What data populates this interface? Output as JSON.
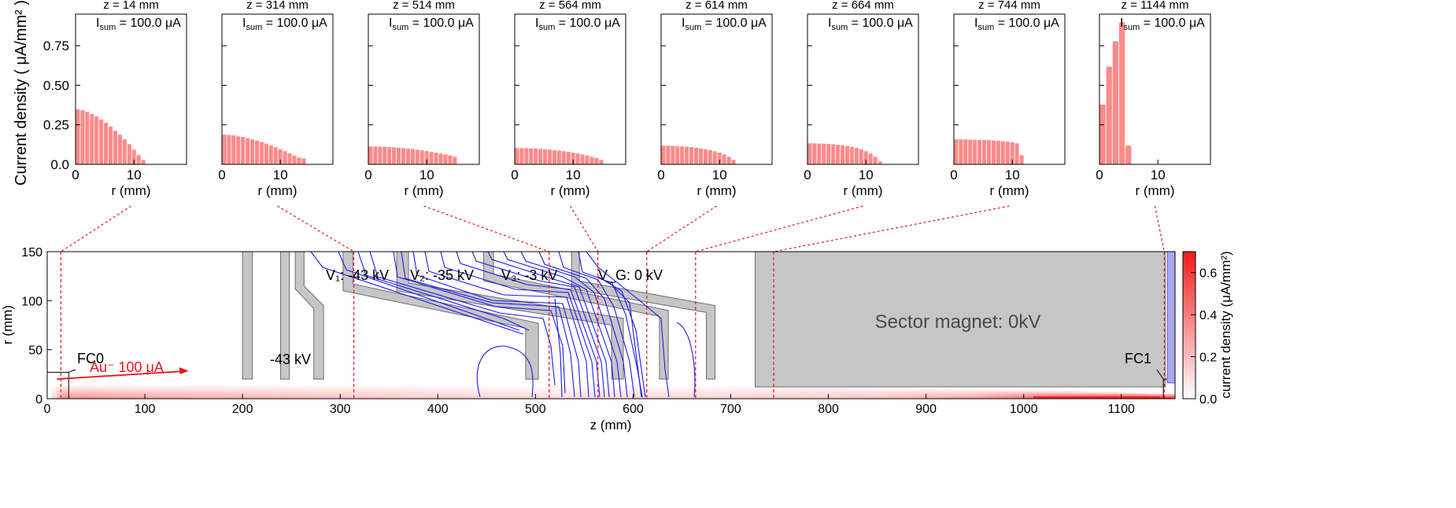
{
  "figure": {
    "top_ylabel": "Current density ( μA/mm² )",
    "top_xlabel": "r (mm)",
    "top_yticks": [
      "0.0",
      "0.25",
      "0.50",
      "0.75"
    ],
    "top_xticks": [
      "0",
      "10"
    ],
    "isum_label": "I",
    "isum_sub": "sum",
    "isum_value": "= 100.0  μA",
    "bottom_xlabel": "z (mm)",
    "bottom_ylabel": "r (mm)",
    "bottom_xticks": [
      "0",
      "100",
      "200",
      "300",
      "400",
      "500",
      "600",
      "700",
      "800",
      "900",
      "1000",
      "1100"
    ],
    "bottom_yticks": [
      "0",
      "50",
      "100",
      "150"
    ],
    "colorbar_label": "current density (μA/mm²)",
    "colorbar_ticks": [
      "0.0",
      "0.2",
      "0.4",
      "0.6"
    ],
    "annotations": {
      "fc0": "FC0",
      "fc1": "FC1",
      "beam": "Au⁻ 100 μA",
      "v_left": "-43 kV",
      "v1": "V₁: -43 kV",
      "v2": "V₂: -35 kV",
      "v3": "V₃: -3 kV",
      "vg": "V_G: 0 kV",
      "sector": "Sector magnet: 0kV"
    },
    "colors": {
      "bar": "#ff8a8a",
      "beam": "#e8151b",
      "equipotential": "#1a1aee",
      "electrode": "#c6c6c6",
      "cut": "#e8151b"
    }
  },
  "chart_data": [
    {
      "type": "bar",
      "subplot": "histogram",
      "title": "z = 14 mm",
      "xlabel": "r (mm)",
      "ylabel": "Current density ( μA/mm² )",
      "xlim": [
        0,
        19
      ],
      "ylim": [
        0,
        0.95
      ],
      "bin_width_mm": 0.8,
      "values": [
        0.35,
        0.345,
        0.335,
        0.32,
        0.305,
        0.285,
        0.265,
        0.24,
        0.215,
        0.19,
        0.16,
        0.13,
        0.095,
        0.06,
        0.03
      ]
    },
    {
      "type": "bar",
      "subplot": "histogram",
      "title": "z = 314 mm",
      "xlabel": "r (mm)",
      "xlim": [
        0,
        19
      ],
      "ylim": [
        0,
        0.95
      ],
      "bin_width_mm": 0.8,
      "values": [
        0.19,
        0.188,
        0.185,
        0.18,
        0.175,
        0.168,
        0.16,
        0.152,
        0.143,
        0.133,
        0.122,
        0.11,
        0.098,
        0.085,
        0.072,
        0.058,
        0.045,
        0.04
      ]
    },
    {
      "type": "bar",
      "subplot": "histogram",
      "title": "z = 514 mm",
      "xlabel": "r (mm)",
      "xlim": [
        0,
        19
      ],
      "ylim": [
        0,
        0.95
      ],
      "bin_width_mm": 0.8,
      "values": [
        0.115,
        0.115,
        0.114,
        0.113,
        0.112,
        0.11,
        0.108,
        0.105,
        0.102,
        0.099,
        0.095,
        0.091,
        0.086,
        0.081,
        0.076,
        0.07,
        0.064,
        0.058,
        0.05
      ]
    },
    {
      "type": "bar",
      "subplot": "histogram",
      "title": "z = 564 mm",
      "xlabel": "r (mm)",
      "xlim": [
        0,
        19
      ],
      "ylim": [
        0,
        0.95
      ],
      "bin_width_mm": 0.8,
      "values": [
        0.105,
        0.105,
        0.104,
        0.103,
        0.102,
        0.1,
        0.098,
        0.095,
        0.092,
        0.089,
        0.085,
        0.081,
        0.076,
        0.071,
        0.065,
        0.058,
        0.05,
        0.042,
        0.03
      ]
    },
    {
      "type": "bar",
      "subplot": "histogram",
      "title": "z = 614 mm",
      "xlabel": "r (mm)",
      "xlim": [
        0,
        19
      ],
      "ylim": [
        0,
        0.95
      ],
      "bin_width_mm": 0.8,
      "values": [
        0.12,
        0.12,
        0.119,
        0.118,
        0.116,
        0.114,
        0.111,
        0.107,
        0.103,
        0.098,
        0.092,
        0.085,
        0.076,
        0.065,
        0.05,
        0.03
      ]
    },
    {
      "type": "bar",
      "subplot": "histogram",
      "title": "z = 664 mm",
      "xlabel": "r (mm)",
      "xlim": [
        0,
        19
      ],
      "ylim": [
        0,
        0.95
      ],
      "bin_width_mm": 0.8,
      "values": [
        0.135,
        0.135,
        0.134,
        0.133,
        0.131,
        0.129,
        0.126,
        0.122,
        0.118,
        0.113,
        0.106,
        0.097,
        0.085,
        0.07,
        0.05,
        0.02
      ]
    },
    {
      "type": "bar",
      "subplot": "histogram",
      "title": "z = 744 mm",
      "xlabel": "r (mm)",
      "xlim": [
        0,
        19
      ],
      "ylim": [
        0,
        0.95
      ],
      "bin_width_mm": 0.8,
      "values": [
        0.16,
        0.16,
        0.16,
        0.159,
        0.158,
        0.157,
        0.156,
        0.155,
        0.153,
        0.151,
        0.149,
        0.147,
        0.142,
        0.135,
        0.06
      ]
    },
    {
      "type": "bar",
      "subplot": "histogram",
      "title": "z = 1144 mm",
      "xlabel": "r (mm)",
      "xlim": [
        0,
        19
      ],
      "ylim": [
        0,
        0.95
      ],
      "bin_width_mm": 1.1,
      "values": [
        0.38,
        0.62,
        0.78,
        0.9,
        0.12
      ]
    },
    {
      "type": "heatmap",
      "subplot": "beam-line cross section",
      "xlabel": "z (mm)",
      "ylabel": "r (mm)",
      "xlim": [
        0,
        1155
      ],
      "ylim": [
        0,
        150
      ],
      "colorbar": {
        "label": "current density (μA/mm²)",
        "range": [
          0.0,
          0.7
        ],
        "colormap": "white-to-red"
      },
      "beam_density": [
        {
          "z": 0,
          "peak": 0.02
        },
        {
          "z": 14,
          "peak": 0.35
        },
        {
          "z": 100,
          "peak": 0.28
        },
        {
          "z": 300,
          "peak": 0.19
        },
        {
          "z": 514,
          "peak": 0.115
        },
        {
          "z": 664,
          "peak": 0.135
        },
        {
          "z": 850,
          "peak": 0.18
        },
        {
          "z": 950,
          "peak": 0.3
        },
        {
          "z": 1030,
          "peak": 0.55
        },
        {
          "z": 1080,
          "peak": 0.65
        },
        {
          "z": 1144,
          "peak": 0.9
        }
      ],
      "electrodes": [
        {
          "name": "FC0",
          "points": [
            [
              0,
              0
            ],
            [
              22,
              0
            ],
            [
              22,
              27
            ],
            [
              0,
              27
            ]
          ]
        },
        {
          "name": "plate-1",
          "points": [
            [
              200,
              20
            ],
            [
              210,
              20
            ],
            [
              210,
              150
            ],
            [
              200,
              150
            ]
          ]
        },
        {
          "name": "plate-2",
          "points": [
            [
              239,
              20
            ],
            [
              248,
              20
            ],
            [
              248,
              150
            ],
            [
              239,
              150
            ]
          ]
        },
        {
          "name": "plate-3",
          "points": [
            [
              273,
              20
            ],
            [
              283,
              20
            ],
            [
              283,
              95
            ],
            [
              263,
              115
            ],
            [
              263,
              150
            ],
            [
              254,
              150
            ],
            [
              254,
              112
            ],
            [
              273,
              92
            ]
          ]
        },
        {
          "name": "V1-electrode",
          "points": [
            [
              490,
              20
            ],
            [
              503,
              20
            ],
            [
              503,
              77
            ],
            [
              313,
              117
            ],
            [
              313,
              150
            ],
            [
              303,
              150
            ],
            [
              303,
              110
            ],
            [
              490,
              72
            ]
          ]
        },
        {
          "name": "V2-electrode",
          "points": [
            [
              578,
              20
            ],
            [
              590,
              20
            ],
            [
              590,
              82
            ],
            [
              370,
              118
            ],
            [
              370,
              150
            ],
            [
              358,
              150
            ],
            [
              358,
              110
            ],
            [
              578,
              75
            ]
          ]
        },
        {
          "name": "V3-electrode",
          "points": [
            [
              627,
              20
            ],
            [
              636,
              20
            ],
            [
              636,
              90
            ],
            [
              457,
              127
            ],
            [
              457,
              150
            ],
            [
              447,
              150
            ],
            [
              447,
              120
            ],
            [
              627,
              84
            ]
          ]
        },
        {
          "name": "VG-electrode",
          "points": [
            [
              675,
              20
            ],
            [
              684,
              20
            ],
            [
              684,
              95
            ],
            [
              545,
              120
            ],
            [
              545,
              150
            ],
            [
              537,
              150
            ],
            [
              537,
              112
            ],
            [
              675,
              88
            ]
          ]
        },
        {
          "name": "sector-magnet",
          "points": [
            [
              725,
              12
            ],
            [
              1145,
              12
            ],
            [
              1145,
              150
            ],
            [
              725,
              150
            ]
          ]
        },
        {
          "name": "FC1",
          "points": [
            [
              1143,
              0
            ],
            [
              1155,
              0
            ],
            [
              1155,
              20
            ],
            [
              1143,
              20
            ]
          ]
        }
      ],
      "cuts_z_mm": [
        14,
        314,
        514,
        564,
        614,
        664,
        744,
        1144
      ],
      "beam_arrow": {
        "from": [
          10,
          20
        ],
        "to": [
          140,
          28
        ]
      }
    }
  ]
}
